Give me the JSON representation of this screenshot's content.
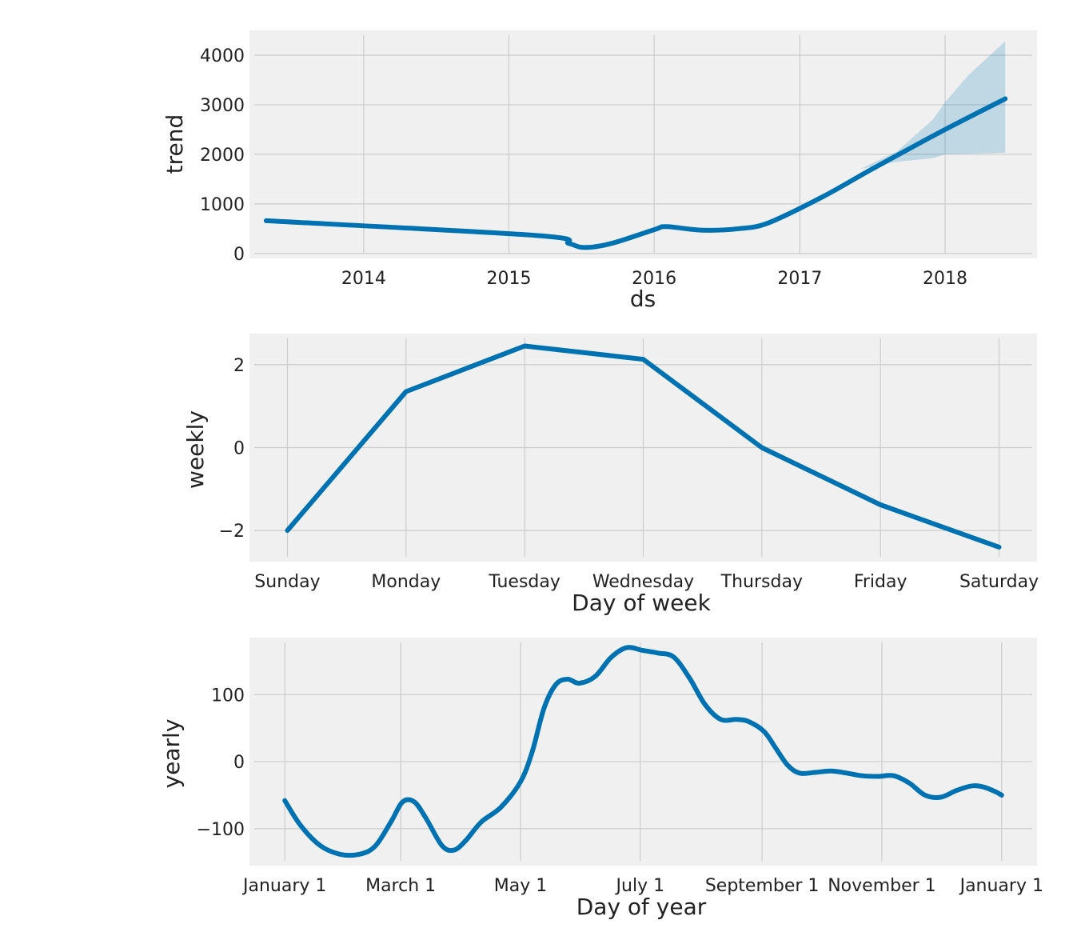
{
  "chart_data": [
    {
      "type": "line",
      "xlabel": "ds",
      "ylabel": "trend",
      "xaxis": "date",
      "xlim": [
        "2013-03-20",
        "2018-08-20"
      ],
      "ylim": [
        -100,
        4500
      ],
      "xticks": [
        {
          "value": "2014-01-01",
          "label": "2014"
        },
        {
          "value": "2015-01-01",
          "label": "2015"
        },
        {
          "value": "2016-01-01",
          "label": "2016"
        },
        {
          "value": "2017-01-01",
          "label": "2017"
        },
        {
          "value": "2018-01-01",
          "label": "2018"
        }
      ],
      "yticks": [
        {
          "value": 0,
          "label": "0"
        },
        {
          "value": 1000,
          "label": "1000"
        },
        {
          "value": 2000,
          "label": "2000"
        },
        {
          "value": 3000,
          "label": "3000"
        },
        {
          "value": 4000,
          "label": "4000"
        }
      ],
      "series": [
        {
          "x": [
            "2013-05-01",
            "2015-03-15",
            "2015-06-01",
            "2015-07-10",
            "2015-09-15",
            "2016-01-01",
            "2016-02-01",
            "2016-05-01",
            "2016-08-01",
            "2016-10-15",
            "2017-03-01",
            "2017-07-01",
            "2018-01-01",
            "2018-06-01"
          ],
          "y": [
            660,
            360,
            200,
            120,
            200,
            480,
            540,
            470,
            500,
            620,
            1150,
            1700,
            2500,
            3120
          ]
        }
      ],
      "band": {
        "x": [
          "2017-06-01",
          "2017-09-01",
          "2017-12-01",
          "2018-01-01",
          "2018-03-01",
          "2018-06-01"
        ],
        "upper": [
          1700,
          2050,
          2700,
          3050,
          3600,
          4280
        ],
        "lower": [
          1700,
          1850,
          1920,
          2000,
          2010,
          2030
        ]
      }
    },
    {
      "type": "line",
      "xlabel": "Day of week",
      "ylabel": "weekly",
      "categories": [
        "Sunday",
        "Monday",
        "Tuesday",
        "Wednesday",
        "Thursday",
        "Friday",
        "Saturday"
      ],
      "ylim": [
        -2.75,
        2.75
      ],
      "yticks": [
        {
          "value": -2,
          "label": "−2"
        },
        {
          "value": 0,
          "label": "0"
        },
        {
          "value": 2,
          "label": "2"
        }
      ],
      "series": [
        {
          "values": [
            -2.0,
            1.35,
            2.45,
            2.13,
            0.0,
            -1.38,
            -2.4
          ]
        }
      ]
    },
    {
      "type": "line",
      "xlabel": "Day of year",
      "ylabel": "yearly",
      "xlim": [
        -18,
        383
      ],
      "ylim": [
        -155,
        185
      ],
      "xticks": [
        {
          "value": 0,
          "label": "January 1"
        },
        {
          "value": 59,
          "label": "March 1"
        },
        {
          "value": 120,
          "label": "May 1"
        },
        {
          "value": 181,
          "label": "July 1"
        },
        {
          "value": 243,
          "label": "September 1"
        },
        {
          "value": 304,
          "label": "November 1"
        },
        {
          "value": 365,
          "label": "January 1"
        }
      ],
      "yticks": [
        {
          "value": -100,
          "label": "−100"
        },
        {
          "value": 0,
          "label": "0"
        },
        {
          "value": 100,
          "label": "100"
        }
      ],
      "series": [
        {
          "x": [
            0,
            8,
            18,
            28,
            38,
            46,
            54,
            60,
            66,
            72,
            80,
            86,
            92,
            100,
            110,
            120,
            126,
            132,
            138,
            144,
            150,
            158,
            166,
            174,
            182,
            190,
            198,
            206,
            214,
            222,
            230,
            236,
            244,
            250,
            256,
            262,
            270,
            278,
            286,
            294,
            302,
            310,
            318,
            326,
            334,
            342,
            350,
            356,
            362,
            365
          ],
          "y": [
            -58,
            -95,
            -125,
            -138,
            -138,
            -126,
            -90,
            -60,
            -60,
            -85,
            -125,
            -132,
            -118,
            -90,
            -68,
            -30,
            15,
            80,
            115,
            123,
            117,
            127,
            155,
            170,
            166,
            162,
            156,
            125,
            85,
            63,
            63,
            60,
            45,
            20,
            -5,
            -17,
            -16,
            -14,
            -17,
            -21,
            -22,
            -21,
            -32,
            -50,
            -53,
            -43,
            -36,
            -38,
            -45,
            -50
          ]
        }
      ]
    }
  ]
}
